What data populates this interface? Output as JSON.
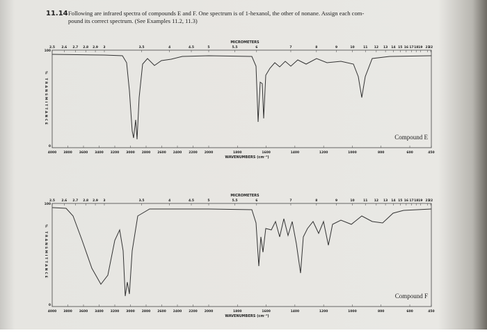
{
  "problem": {
    "number": "11.14",
    "text_lines": [
      "Following are infrared spectra of compounds E and F. One spectrum is of 1-hexanol, the other of nonane. Assign each com-",
      "pound its correct spectrum. (See Examples 11.2, 11.3)"
    ]
  },
  "spectra": [
    {
      "y_axis_label": "% TRANSMITTANCE",
      "y_top": "100",
      "y_bottom": "0",
      "micrometers_label": "MICROMETERS",
      "micrometer_ticks": [
        2.5,
        2.6,
        2.7,
        2.8,
        2.9,
        3,
        3.5,
        4,
        4.5,
        5,
        5.5,
        6,
        7,
        8,
        9,
        10,
        11,
        12,
        13,
        14,
        15,
        16,
        17,
        18,
        19,
        21,
        22
      ],
      "wavenumber_ticks": [
        4000,
        3800,
        3600,
        3400,
        3200,
        3000,
        2800,
        2600,
        2400,
        2200,
        2000,
        1800,
        1600,
        1400,
        1200,
        1000,
        800,
        600,
        450
      ],
      "wavenumbers_label": "WAVENUMBERS (cm⁻¹)",
      "compound": "Compound E"
    },
    {
      "y_axis_label": "% TRANSMITTANCE",
      "y_top": "100",
      "y_bottom": "0",
      "micrometers_label": "MICROMETERS",
      "micrometer_ticks": [
        2.5,
        2.6,
        2.7,
        2.8,
        2.9,
        3,
        3.5,
        4,
        4.5,
        5,
        5.5,
        6,
        7,
        8,
        9,
        10,
        11,
        12,
        13,
        14,
        15,
        16,
        17,
        18,
        19,
        21,
        22
      ],
      "wavenumber_ticks": [
        4000,
        3800,
        3600,
        3400,
        3200,
        3000,
        2800,
        2600,
        2400,
        2200,
        2000,
        1800,
        1600,
        1400,
        1200,
        1000,
        800,
        600,
        450
      ],
      "wavenumbers_label": "WAVENUMBERS (cm⁻¹)",
      "compound": "Compound F"
    }
  ]
}
